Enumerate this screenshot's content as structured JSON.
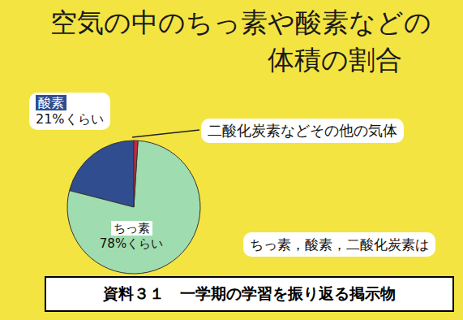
{
  "chart_data": {
    "type": "pie",
    "title": [
      "空気の中のちっ素や酸素などの",
      "体積の割合"
    ],
    "categories": [
      "酸素",
      "ちっ素",
      "二酸化炭素などその他の気体"
    ],
    "values": [
      21,
      78,
      1
    ],
    "value_labels": [
      "21%くらい",
      "78%くらい",
      null
    ],
    "colors": [
      "#2f4d8f",
      "#9fdcb0",
      "#c8283c"
    ],
    "annotations": [
      "ちっ素，酸素，二酸化炭素は"
    ],
    "caption": "資料３１　一学期の学習を振り返る掲示物"
  }
}
